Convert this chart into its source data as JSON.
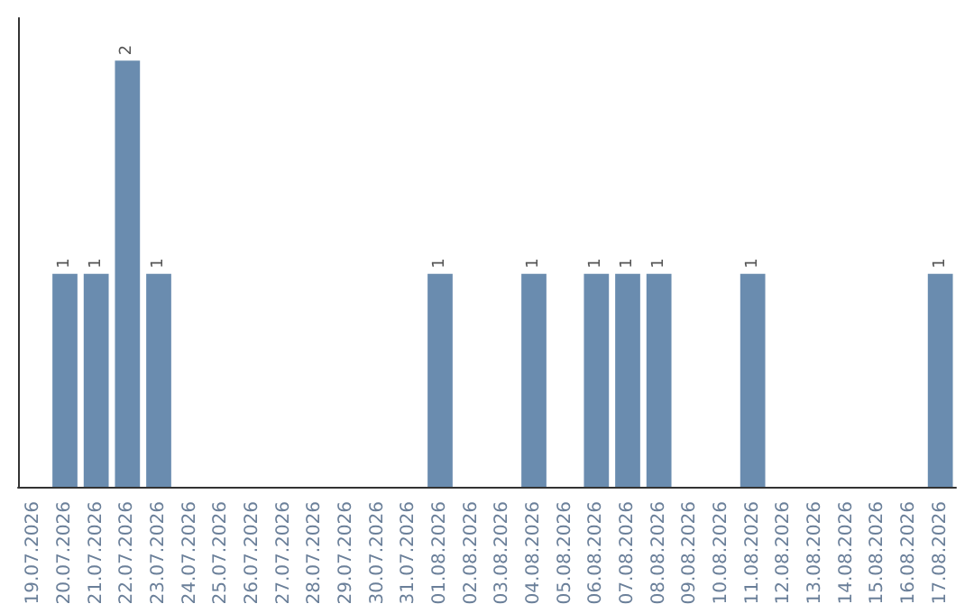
{
  "chart_data": {
    "type": "bar",
    "categories": [
      "19.07.2026",
      "20.07.2026",
      "21.07.2026",
      "22.07.2026",
      "23.07.2026",
      "24.07.2026",
      "25.07.2026",
      "26.07.2026",
      "27.07.2026",
      "28.07.2026",
      "29.07.2026",
      "30.07.2026",
      "31.07.2026",
      "01.08.2026",
      "02.08.2026",
      "03.08.2026",
      "04.08.2026",
      "05.08.2026",
      "06.08.2026",
      "07.08.2026",
      "08.08.2026",
      "09.08.2026",
      "10.08.2026",
      "11.08.2026",
      "12.08.2026",
      "13.08.2026",
      "14.08.2026",
      "15.08.2026",
      "16.08.2026",
      "17.08.2026"
    ],
    "values": [
      0,
      1,
      1,
      2,
      1,
      0,
      0,
      0,
      0,
      0,
      0,
      0,
      0,
      1,
      0,
      0,
      1,
      0,
      1,
      1,
      1,
      0,
      0,
      1,
      0,
      0,
      0,
      0,
      0,
      1
    ],
    "value_labels": [
      null,
      "1",
      "1",
      "2",
      "1",
      null,
      null,
      null,
      null,
      null,
      null,
      null,
      null,
      "1",
      null,
      null,
      "1",
      null,
      "1",
      "1",
      "1",
      null,
      null,
      "1",
      null,
      null,
      null,
      null,
      null,
      "1"
    ],
    "color": "#6a8caf",
    "grid": false,
    "tick_labels": "x"
  }
}
